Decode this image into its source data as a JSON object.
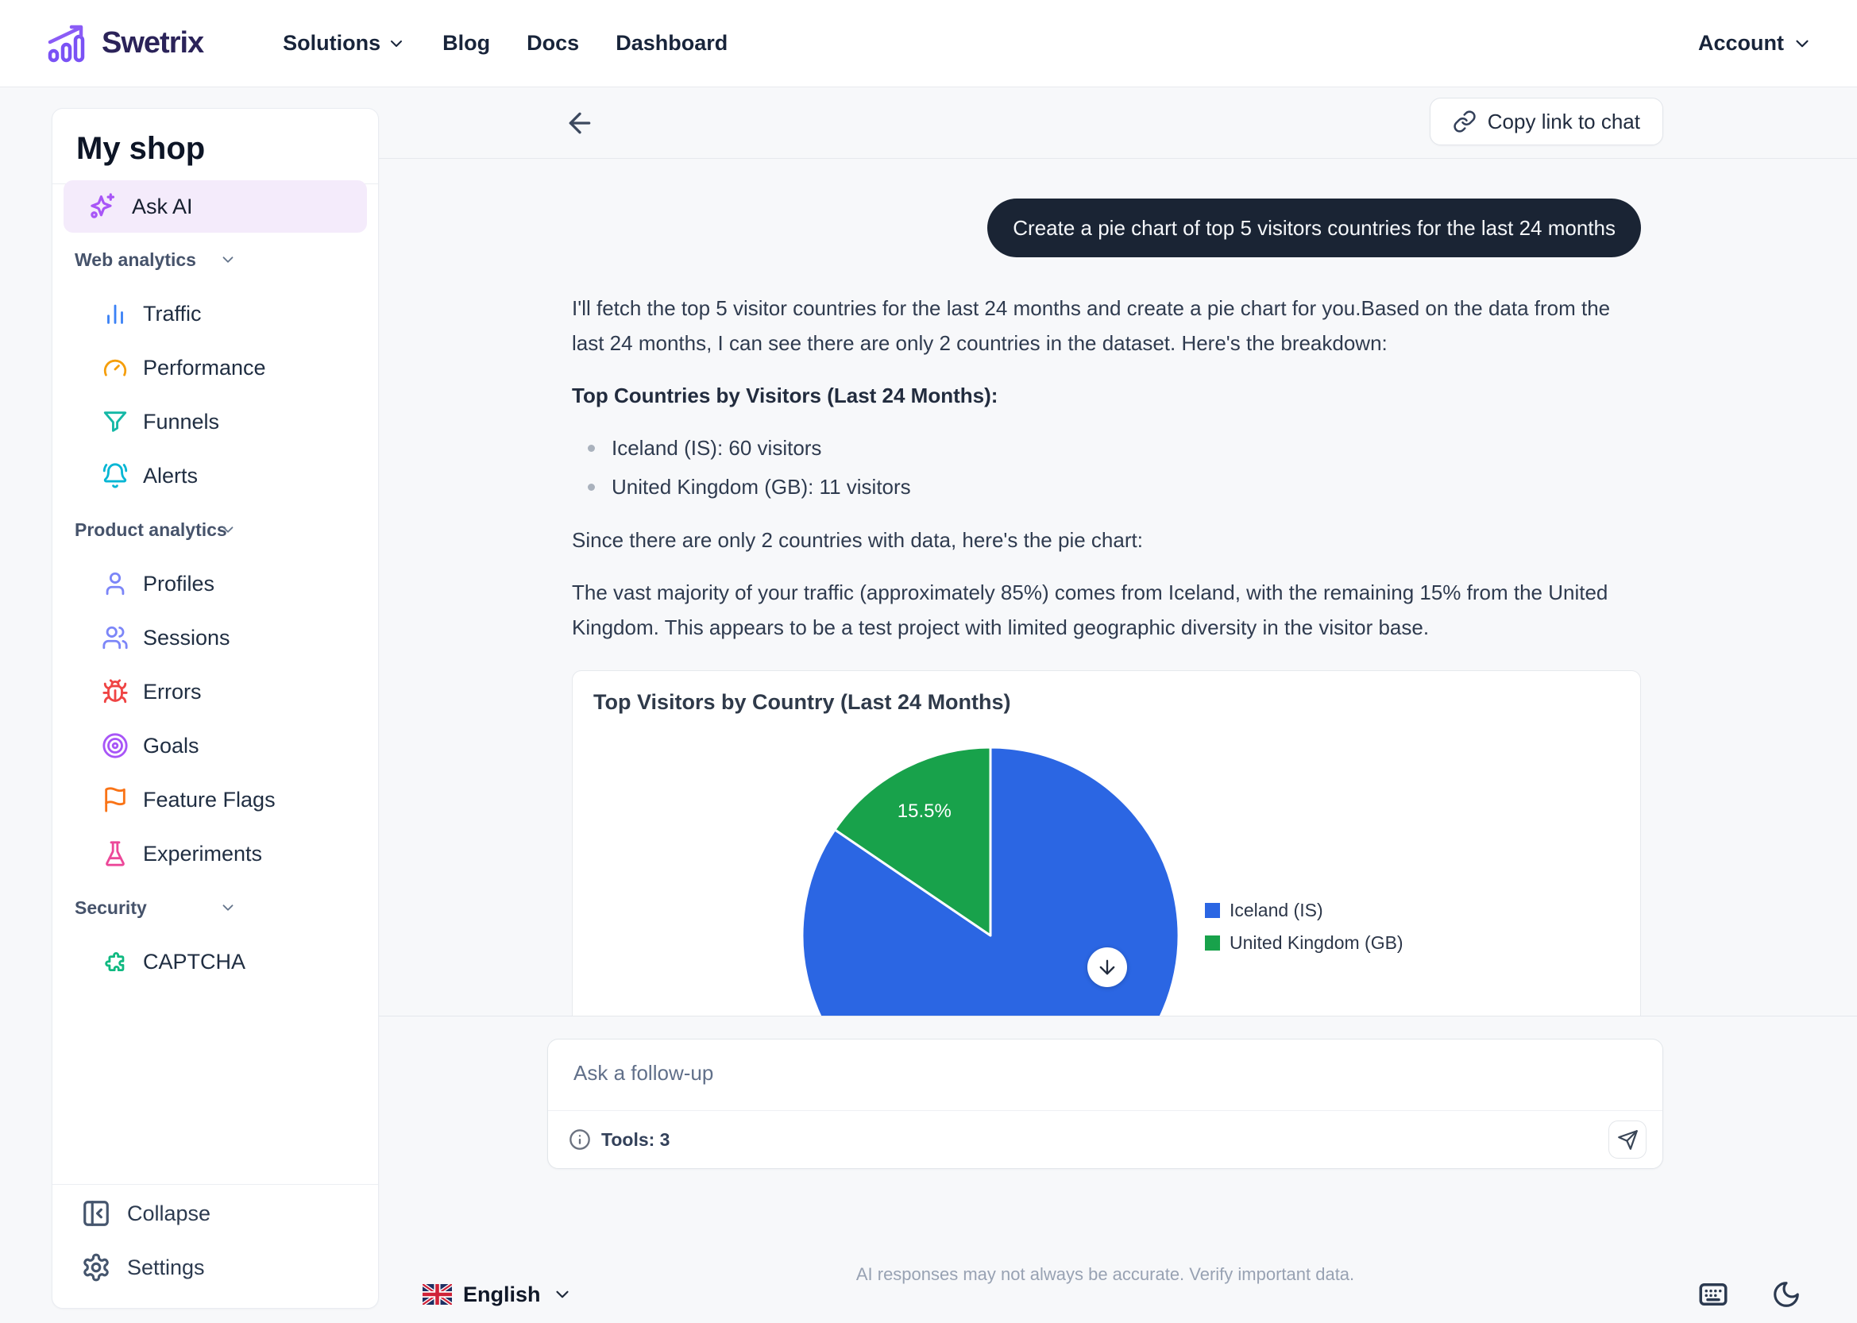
{
  "navbar": {
    "logo_text": "Swetrix",
    "links": [
      "Solutions",
      "Blog",
      "Docs",
      "Dashboard"
    ],
    "account_label": "Account"
  },
  "sidebar": {
    "project_name": "My shop",
    "ask_ai": {
      "label": "Ask AI",
      "icon": "sparkles-icon",
      "icon_color": "#a855f7"
    },
    "sections": [
      {
        "label": "Web analytics",
        "items": [
          {
            "label": "Traffic",
            "icon": "bar-chart-icon",
            "icon_color": "#3b82f6"
          },
          {
            "label": "Performance",
            "icon": "gauge-icon",
            "icon_color": "#f59e0b"
          },
          {
            "label": "Funnels",
            "icon": "funnel-icon",
            "icon_color": "#14b8a6"
          },
          {
            "label": "Alerts",
            "icon": "bell-icon",
            "icon_color": "#06b6d4"
          }
        ]
      },
      {
        "label": "Product analytics",
        "items": [
          {
            "label": "Profiles",
            "icon": "user-icon",
            "icon_color": "#7c86f8"
          },
          {
            "label": "Sessions",
            "icon": "users-icon",
            "icon_color": "#7c86f8"
          },
          {
            "label": "Errors",
            "icon": "bug-icon",
            "icon_color": "#ef4444"
          },
          {
            "label": "Goals",
            "icon": "target-icon",
            "icon_color": "#a855f7"
          },
          {
            "label": "Feature Flags",
            "icon": "flag-icon",
            "icon_color": "#f97316"
          },
          {
            "label": "Experiments",
            "icon": "flask-icon",
            "icon_color": "#ec4899"
          }
        ]
      },
      {
        "label": "Security",
        "items": [
          {
            "label": "CAPTCHA",
            "icon": "puzzle-icon",
            "icon_color": "#10b981"
          }
        ]
      }
    ],
    "footer_items": [
      {
        "label": "Collapse",
        "icon": "collapse-sidebar-icon"
      },
      {
        "label": "Settings",
        "icon": "gear-icon"
      }
    ]
  },
  "chat": {
    "copy_link_label": "Copy link to chat",
    "user_message": "Create a pie chart of top 5 visitors countries for the last 24 months",
    "ai_paragraph_1": "I'll fetch the top 5 visitor countries for the last 24 months and create a pie chart for you.Based on the data from the last 24 months, I can see there are only 2 countries in the dataset. Here's the breakdown:",
    "ai_heading": "Top Countries by Visitors (Last 24 Months):",
    "ai_bullets": [
      "Iceland (IS): 60 visitors",
      "United Kingdom (GB): 11 visitors"
    ],
    "ai_paragraph_2": "Since there are only 2 countries with data, here's the pie chart:",
    "ai_paragraph_3": "The vast majority of your traffic (approximately 85%) comes from Iceland, with the remaining 15% from the United Kingdom. This appears to be a test project with limited geographic diversity in the visitor base."
  },
  "chart_data": {
    "type": "pie",
    "title": "Top Visitors by Country (Last 24 Months)",
    "labels": [
      "Iceland (IS)",
      "United Kingdom (GB)"
    ],
    "values": [
      60,
      11
    ],
    "percentages": [
      84.5,
      15.5
    ],
    "slice_labels": [
      "",
      "15.5%"
    ],
    "colors": [
      "#2b66e3",
      "#18a24b"
    ],
    "legend_position": "right",
    "start_angle_deg": 0,
    "direction": "clockwise"
  },
  "composer": {
    "placeholder": "Ask a follow-up",
    "tools_label": "Tools: 3",
    "disclaimer": "AI responses may not always be accurate. Verify important data."
  },
  "footer": {
    "language_label": "English"
  }
}
